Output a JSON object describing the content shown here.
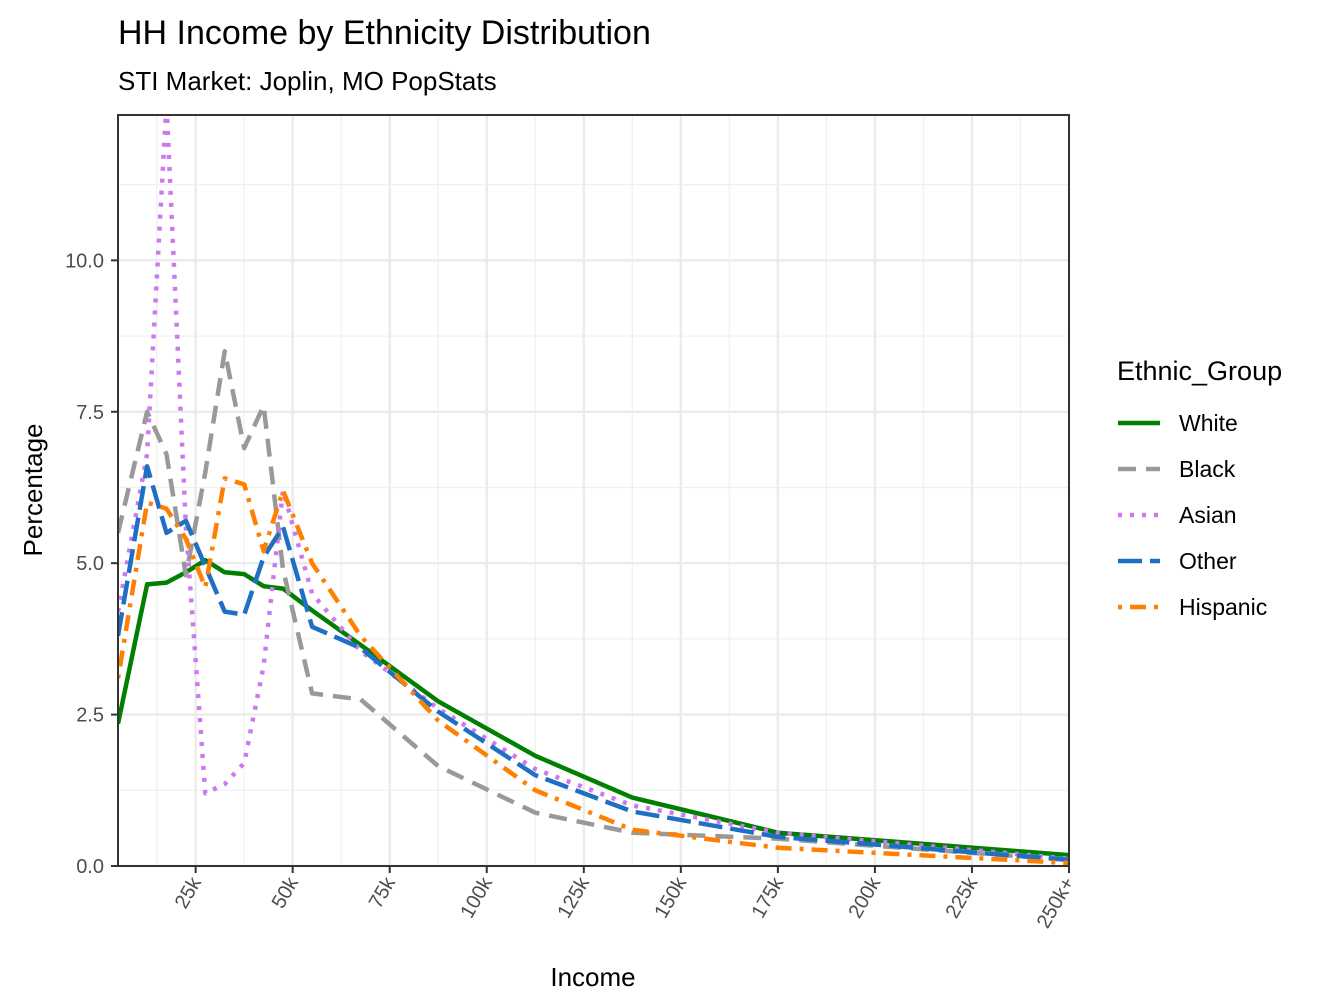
{
  "chart_data": {
    "type": "line",
    "title": "HH Income by Ethnicity Distribution",
    "subtitle": "STI Market: Joplin, MO PopStats",
    "xlabel": "Income",
    "ylabel": "Percentage",
    "xlim": [
      5000,
      250000
    ],
    "ylim": [
      0,
      12.4
    ],
    "x_ticks": [
      {
        "value": 25000,
        "label": "25k"
      },
      {
        "value": 50000,
        "label": "50k"
      },
      {
        "value": 75000,
        "label": "75k"
      },
      {
        "value": 100000,
        "label": "100k"
      },
      {
        "value": 125000,
        "label": "125k"
      },
      {
        "value": 150000,
        "label": "150k"
      },
      {
        "value": 175000,
        "label": "175k"
      },
      {
        "value": 200000,
        "label": "200k"
      },
      {
        "value": 225000,
        "label": "225k"
      },
      {
        "value": 250000,
        "label": "250k+"
      }
    ],
    "y_ticks": [
      {
        "value": 0,
        "label": "0.0"
      },
      {
        "value": 2.5,
        "label": "2.5"
      },
      {
        "value": 5,
        "label": "5.0"
      },
      {
        "value": 7.5,
        "label": "7.5"
      },
      {
        "value": 10,
        "label": "10.0"
      }
    ],
    "grid": true,
    "legend_position": "right",
    "legend_title": "Ethnic_Group",
    "x": [
      5000,
      12500,
      17500,
      22500,
      27500,
      32500,
      37500,
      42500,
      47500,
      55000,
      67500,
      87500,
      112500,
      137500,
      175000,
      250000
    ],
    "series": [
      {
        "name": "White",
        "color": "#007f00",
        "dash": "solid",
        "values": [
          2.35,
          4.65,
          4.68,
          4.85,
          5.05,
          4.85,
          4.82,
          4.62,
          4.58,
          4.22,
          3.65,
          2.72,
          1.82,
          1.13,
          0.55,
          0.18
        ]
      },
      {
        "name": "Black",
        "color": "#999999",
        "dash": "dashed",
        "values": [
          5.5,
          7.5,
          6.8,
          4.8,
          6.5,
          8.5,
          6.9,
          7.6,
          4.9,
          2.85,
          2.75,
          1.65,
          0.88,
          0.55,
          0.45,
          0.1
        ]
      },
      {
        "name": "Asian",
        "color": "#cc79f0",
        "dash": "dotted",
        "values": [
          4.2,
          6.8,
          12.6,
          5.6,
          1.2,
          1.35,
          1.7,
          3.3,
          6.2,
          4.5,
          3.55,
          2.6,
          1.6,
          1.0,
          0.55,
          0.12
        ]
      },
      {
        "name": "Other",
        "color": "#1f6fc5",
        "dash": "longdash",
        "values": [
          3.8,
          6.6,
          5.5,
          5.7,
          4.95,
          4.2,
          4.15,
          5.1,
          5.6,
          3.95,
          3.6,
          2.55,
          1.5,
          0.9,
          0.48,
          0.1
        ]
      },
      {
        "name": "Hispanic",
        "color": "#ff8000",
        "dash": "dotdash",
        "values": [
          3.1,
          6.0,
          5.9,
          5.4,
          4.6,
          6.4,
          6.3,
          5.2,
          6.2,
          5.0,
          3.8,
          2.4,
          1.25,
          0.6,
          0.3,
          0.05
        ]
      }
    ]
  }
}
